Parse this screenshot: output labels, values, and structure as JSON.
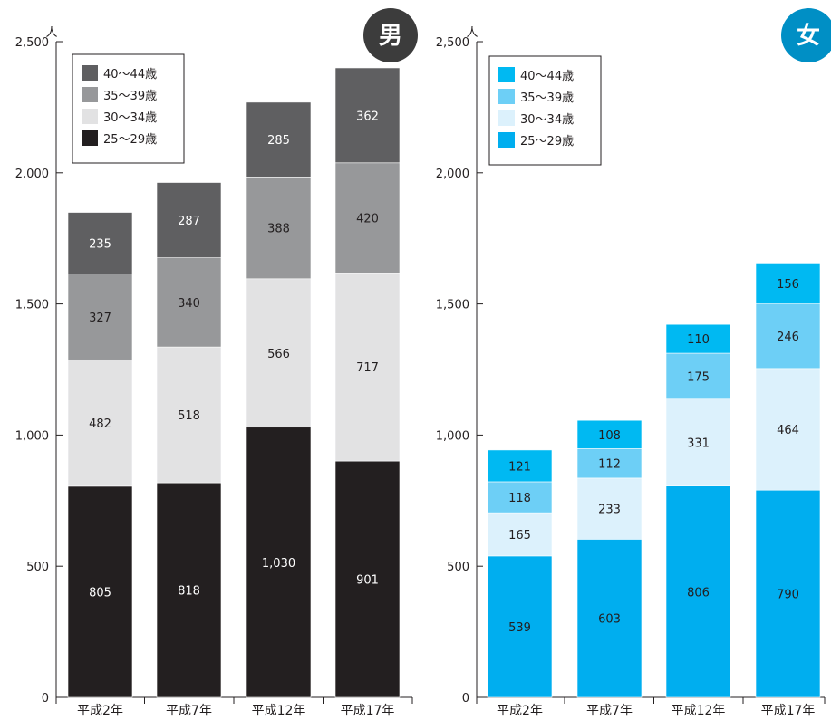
{
  "chart_data": [
    {
      "type": "bar",
      "stacked": true,
      "badge": "男",
      "unit": "人",
      "categories": [
        "平成2年",
        "平成7年",
        "平成12年",
        "平成17年"
      ],
      "ylim": [
        0,
        2500
      ],
      "yticks": [
        "0",
        "500",
        "1,000",
        "1,500",
        "2,000",
        "2,500"
      ],
      "series": [
        {
          "name": "25〜29歳",
          "values": [
            805,
            818,
            1030,
            901
          ],
          "labels": [
            "805",
            "818",
            "1,030",
            "901"
          ],
          "color": "#231f20",
          "text_color": "#ffffff"
        },
        {
          "name": "30〜34歳",
          "values": [
            482,
            518,
            566,
            717
          ],
          "labels": [
            "482",
            "518",
            "566",
            "717"
          ],
          "color": "#e2e2e3",
          "text_color": "#231f20"
        },
        {
          "name": "35〜39歳",
          "values": [
            327,
            340,
            388,
            420
          ],
          "labels": [
            "327",
            "340",
            "388",
            "420"
          ],
          "color": "#97989a",
          "text_color": "#231f20"
        },
        {
          "name": "40〜44歳",
          "values": [
            235,
            287,
            285,
            362
          ],
          "labels": [
            "235",
            "287",
            "285",
            "362"
          ],
          "color": "#5f5f61",
          "text_color": "#ffffff"
        }
      ],
      "legend": {
        "order": [
          "40〜44歳",
          "35〜39歳",
          "30〜34歳",
          "25〜29歳"
        ],
        "placement": "top-left"
      },
      "badge_color": "#3c3c3c"
    },
    {
      "type": "bar",
      "stacked": true,
      "badge": "女",
      "unit": "人",
      "categories": [
        "平成2年",
        "平成7年",
        "平成12年",
        "平成17年"
      ],
      "ylim": [
        0,
        2500
      ],
      "yticks": [
        "0",
        "500",
        "1,000",
        "1,500",
        "2,000",
        "2,500"
      ],
      "series": [
        {
          "name": "25〜29歳",
          "values": [
            539,
            603,
            806,
            790
          ],
          "labels": [
            "539",
            "603",
            "806",
            "790"
          ],
          "color": "#00aeef",
          "text_color": "#231f20"
        },
        {
          "name": "30〜34歳",
          "values": [
            165,
            233,
            331,
            464
          ],
          "labels": [
            "165",
            "233",
            "331",
            "464"
          ],
          "color": "#dcf1fc",
          "text_color": "#231f20"
        },
        {
          "name": "35〜39歳",
          "values": [
            118,
            112,
            175,
            246
          ],
          "labels": [
            "118",
            "112",
            "175",
            "246"
          ],
          "color": "#6dcff6",
          "text_color": "#231f20"
        },
        {
          "name": "40〜44歳",
          "values": [
            121,
            108,
            110,
            156
          ],
          "labels": [
            "121",
            "108",
            "110",
            "156"
          ],
          "color": "#00b9f2",
          "text_color": "#231f20"
        }
      ],
      "legend": {
        "order": [
          "40〜44歳",
          "35〜39歳",
          "30〜34歳",
          "25〜29歳"
        ],
        "placement": "top-left"
      },
      "badge_color": "#008fc5"
    }
  ]
}
